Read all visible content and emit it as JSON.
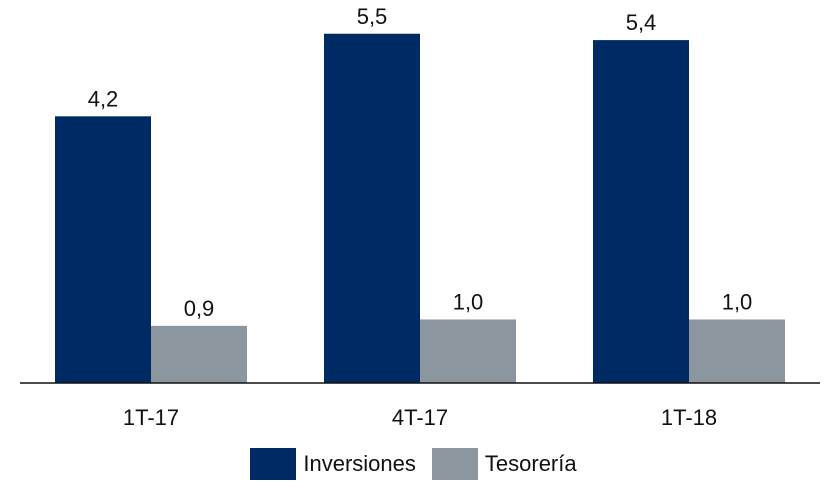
{
  "chart_data": {
    "type": "bar",
    "categories": [
      "1T-17",
      "4T-17",
      "1T-18"
    ],
    "series": [
      {
        "name": "Inversiones",
        "values": [
          4.2,
          5.5,
          5.4
        ],
        "labels": [
          "4,2",
          "5,5",
          "5,4"
        ],
        "color": "#002a64"
      },
      {
        "name": "Tesorería",
        "values": [
          0.9,
          1.0,
          1.0
        ],
        "labels": [
          "0,9",
          "1,0",
          "1,0"
        ],
        "color": "#8b969f"
      }
    ],
    "ylim": [
      0,
      6
    ],
    "grid": false,
    "legend_position": "bottom"
  },
  "colors": {
    "inversiones": "#002a64",
    "tesoreria": "#8b969f",
    "axis": "#111111",
    "text": "#111111"
  },
  "legend": {
    "inversiones_label": "Inversiones",
    "tesoreria_label": "Tesorería"
  }
}
